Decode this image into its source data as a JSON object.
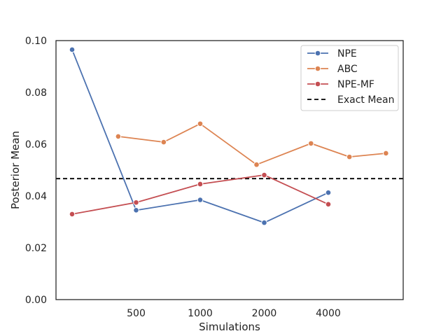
{
  "chart_data": {
    "type": "line",
    "xlabel": "Simulations",
    "ylabel": "Posterior Mean",
    "ylim": [
      0,
      0.1
    ],
    "x_categories": [
      "500",
      "1000",
      "2000",
      "4000"
    ],
    "y_ticks": [
      "0.00",
      "0.02",
      "0.04",
      "0.06",
      "0.08",
      "0.10"
    ],
    "grid": false,
    "legend_position": "top-right",
    "series": [
      {
        "name": "NPE",
        "color": "#4c72b0",
        "points": [
          {
            "x": 0.0,
            "y": 0.0965
          },
          {
            "x": 1.0,
            "y": 0.0345
          },
          {
            "x": 2.0,
            "y": 0.0385
          },
          {
            "x": 3.0,
            "y": 0.0297
          },
          {
            "x": 4.0,
            "y": 0.0413
          }
        ]
      },
      {
        "name": "ABC",
        "color": "#dd8452",
        "points": [
          {
            "x": 0.72,
            "y": 0.063
          },
          {
            "x": 1.43,
            "y": 0.0608
          },
          {
            "x": 2.0,
            "y": 0.0679
          },
          {
            "x": 2.88,
            "y": 0.0521
          },
          {
            "x": 3.73,
            "y": 0.0603
          },
          {
            "x": 4.33,
            "y": 0.0551
          },
          {
            "x": 4.9,
            "y": 0.0565
          }
        ]
      },
      {
        "name": "NPE-MF",
        "color": "#c44e52",
        "points": [
          {
            "x": 0.0,
            "y": 0.033
          },
          {
            "x": 1.0,
            "y": 0.0375
          },
          {
            "x": 2.0,
            "y": 0.0446
          },
          {
            "x": 3.0,
            "y": 0.0481
          },
          {
            "x": 4.0,
            "y": 0.0368
          }
        ]
      }
    ],
    "reference_line": {
      "name": "Exact Mean",
      "y": 0.0467,
      "color": "#000000",
      "style": "dashed"
    }
  }
}
